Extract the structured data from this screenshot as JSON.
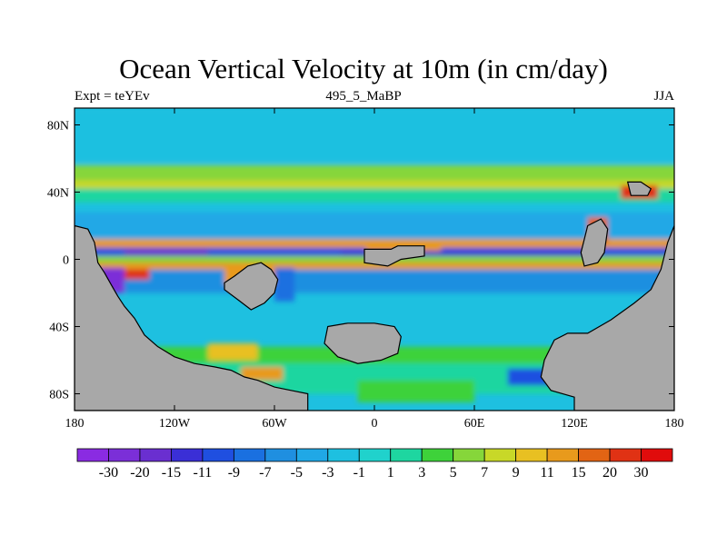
{
  "chart_data": {
    "type": "heatmap",
    "title": "Ocean Vertical Velocity at 10m (in cm/day)",
    "subtitle_left": "Expt = teYEv",
    "subtitle_center": "495_5_MaBP",
    "subtitle_right": "JJA",
    "xlim": [
      -180,
      180
    ],
    "ylim": [
      -90,
      90
    ],
    "x_ticks": [
      {
        "value": -180,
        "label": "180"
      },
      {
        "value": -120,
        "label": "120W"
      },
      {
        "value": -60,
        "label": "60W"
      },
      {
        "value": 0,
        "label": "0"
      },
      {
        "value": 60,
        "label": "60E"
      },
      {
        "value": 120,
        "label": "120E"
      },
      {
        "value": 180,
        "label": "180"
      }
    ],
    "y_ticks": [
      {
        "value": 80,
        "label": "80N"
      },
      {
        "value": 40,
        "label": "40N"
      },
      {
        "value": 0,
        "label": "0"
      },
      {
        "value": -40,
        "label": "40S"
      },
      {
        "value": -80,
        "label": "80S"
      }
    ],
    "colorbar": {
      "labels": [
        "-30",
        "-20",
        "-15",
        "-11",
        "-9",
        "-7",
        "-5",
        "-3",
        "-1",
        "1",
        "3",
        "5",
        "7",
        "9",
        "11",
        "15",
        "20",
        "30"
      ],
      "colors": [
        "#8a2be2",
        "#7b2fd8",
        "#6a2fd0",
        "#3a2fd6",
        "#1f4fe0",
        "#1a70e0",
        "#1f8fe0",
        "#20a8e6",
        "#1ec0e0",
        "#20d2cc",
        "#1ed6a0",
        "#3ed23a",
        "#86d63a",
        "#c8d828",
        "#e8c022",
        "#e89a1c",
        "#e26414",
        "#e03214",
        "#e00c0c"
      ]
    },
    "background_value": -3,
    "land_color": "#a8a8a8",
    "zonal_bands": [
      {
        "lat": [
          58,
          90
        ],
        "value": -3
      },
      {
        "lat": [
          47,
          56
        ],
        "value": 5
      },
      {
        "lat": [
          42,
          47
        ],
        "value": 7
      },
      {
        "lat": [
          34,
          42
        ],
        "value": 1
      },
      {
        "lat": [
          12,
          28
        ],
        "value": -5
      },
      {
        "lat": [
          7,
          12
        ],
        "value": 11
      },
      {
        "lat": [
          2,
          7
        ],
        "value": -11
      },
      {
        "lat": [
          -2,
          2
        ],
        "value": 30
      },
      {
        "lat": [
          -6,
          -2
        ],
        "value": 11
      },
      {
        "lat": [
          -20,
          -6
        ],
        "value": -7
      },
      {
        "lat": [
          -62,
          -52
        ],
        "value": 3
      },
      {
        "lat": [
          -80,
          -62
        ],
        "value": 1
      }
    ],
    "features": [
      {
        "lon": [
          -152,
          130
        ],
        "lat": [
          -2,
          2
        ],
        "value": 30
      },
      {
        "lon": [
          -20,
          130
        ],
        "lat": [
          2,
          5
        ],
        "value": -15
      },
      {
        "lon": [
          -150,
          -100
        ],
        "lat": [
          2,
          6
        ],
        "value": -20
      },
      {
        "lon": [
          -165,
          -150
        ],
        "lat": [
          -20,
          -5
        ],
        "value": -30
      },
      {
        "lon": [
          -150,
          -135
        ],
        "lat": [
          -12,
          -6
        ],
        "value": 20
      },
      {
        "lon": [
          -90,
          -60
        ],
        "lat": [
          -15,
          -5
        ],
        "value": 11
      },
      {
        "lon": [
          -60,
          -48
        ],
        "lat": [
          -25,
          -5
        ],
        "value": -9
      },
      {
        "lon": [
          -5,
          40
        ],
        "lat": [
          5,
          10
        ],
        "value": 11
      },
      {
        "lon": [
          -180,
          180
        ],
        "lat": [
          -2,
          2
        ],
        "value": 5
      },
      {
        "lon": [
          128,
          140
        ],
        "lat": [
          10,
          25
        ],
        "value": 15
      },
      {
        "lon": [
          148,
          170
        ],
        "lat": [
          36,
          44
        ],
        "value": 20
      },
      {
        "lon": [
          -100,
          -70
        ],
        "lat": [
          -60,
          -50
        ],
        "value": 9
      },
      {
        "lon": [
          -80,
          -55
        ],
        "lat": [
          -72,
          -64
        ],
        "value": 11
      },
      {
        "lon": [
          80,
          120
        ],
        "lat": [
          -75,
          -65
        ],
        "value": -11
      },
      {
        "lon": [
          -10,
          60
        ],
        "lat": [
          -85,
          -72
        ],
        "value": 3
      }
    ],
    "land_polygons": [
      {
        "name": "americas",
        "points": [
          [
            -180,
            20
          ],
          [
            -172,
            18
          ],
          [
            -168,
            10
          ],
          [
            -166,
            -2
          ],
          [
            -162,
            -8
          ],
          [
            -158,
            -15
          ],
          [
            -154,
            -22
          ],
          [
            -150,
            -28
          ],
          [
            -144,
            -35
          ],
          [
            -138,
            -45
          ],
          [
            -130,
            -52
          ],
          [
            -120,
            -58
          ],
          [
            -108,
            -62
          ],
          [
            -96,
            -64
          ],
          [
            -86,
            -66
          ],
          [
            -78,
            -70
          ],
          [
            -70,
            -72
          ],
          [
            -60,
            -76
          ],
          [
            -50,
            -78
          ],
          [
            -40,
            -80
          ],
          [
            -40,
            -90
          ],
          [
            -180,
            -90
          ]
        ]
      },
      {
        "name": "africa",
        "points": [
          [
            -90,
            -14
          ],
          [
            -84,
            -10
          ],
          [
            -76,
            -4
          ],
          [
            -68,
            -2
          ],
          [
            -62,
            -6
          ],
          [
            -58,
            -12
          ],
          [
            -60,
            -20
          ],
          [
            -66,
            -26
          ],
          [
            -74,
            -30
          ],
          [
            -82,
            -24
          ],
          [
            -90,
            -18
          ]
        ]
      },
      {
        "name": "west-equatorial-island",
        "points": [
          [
            -6,
            6
          ],
          [
            10,
            6
          ],
          [
            14,
            8
          ],
          [
            30,
            8
          ],
          [
            30,
            2
          ],
          [
            16,
            0
          ],
          [
            8,
            -4
          ],
          [
            -6,
            -2
          ]
        ]
      },
      {
        "name": "southern-continent",
        "points": [
          [
            -28,
            -40
          ],
          [
            -16,
            -38
          ],
          [
            0,
            -38
          ],
          [
            12,
            -40
          ],
          [
            16,
            -46
          ],
          [
            14,
            -56
          ],
          [
            4,
            -60
          ],
          [
            -10,
            -62
          ],
          [
            -22,
            -58
          ],
          [
            -30,
            -50
          ]
        ]
      },
      {
        "name": "east-continent",
        "points": [
          [
            180,
            -90
          ],
          [
            120,
            -90
          ],
          [
            120,
            -82
          ],
          [
            106,
            -78
          ],
          [
            100,
            -70
          ],
          [
            102,
            -60
          ],
          [
            108,
            -48
          ],
          [
            116,
            -44
          ],
          [
            128,
            -44
          ],
          [
            142,
            -36
          ],
          [
            156,
            -26
          ],
          [
            166,
            -18
          ],
          [
            172,
            -6
          ],
          [
            176,
            10
          ],
          [
            180,
            20
          ]
        ]
      },
      {
        "name": "east-equatorial-peninsula",
        "points": [
          [
            128,
            20
          ],
          [
            136,
            24
          ],
          [
            140,
            18
          ],
          [
            138,
            4
          ],
          [
            134,
            -2
          ],
          [
            126,
            -4
          ],
          [
            124,
            4
          ]
        ]
      },
      {
        "name": "northeast-island",
        "points": [
          [
            152,
            46
          ],
          [
            160,
            46
          ],
          [
            166,
            42
          ],
          [
            164,
            38
          ],
          [
            154,
            38
          ]
        ]
      }
    ]
  }
}
